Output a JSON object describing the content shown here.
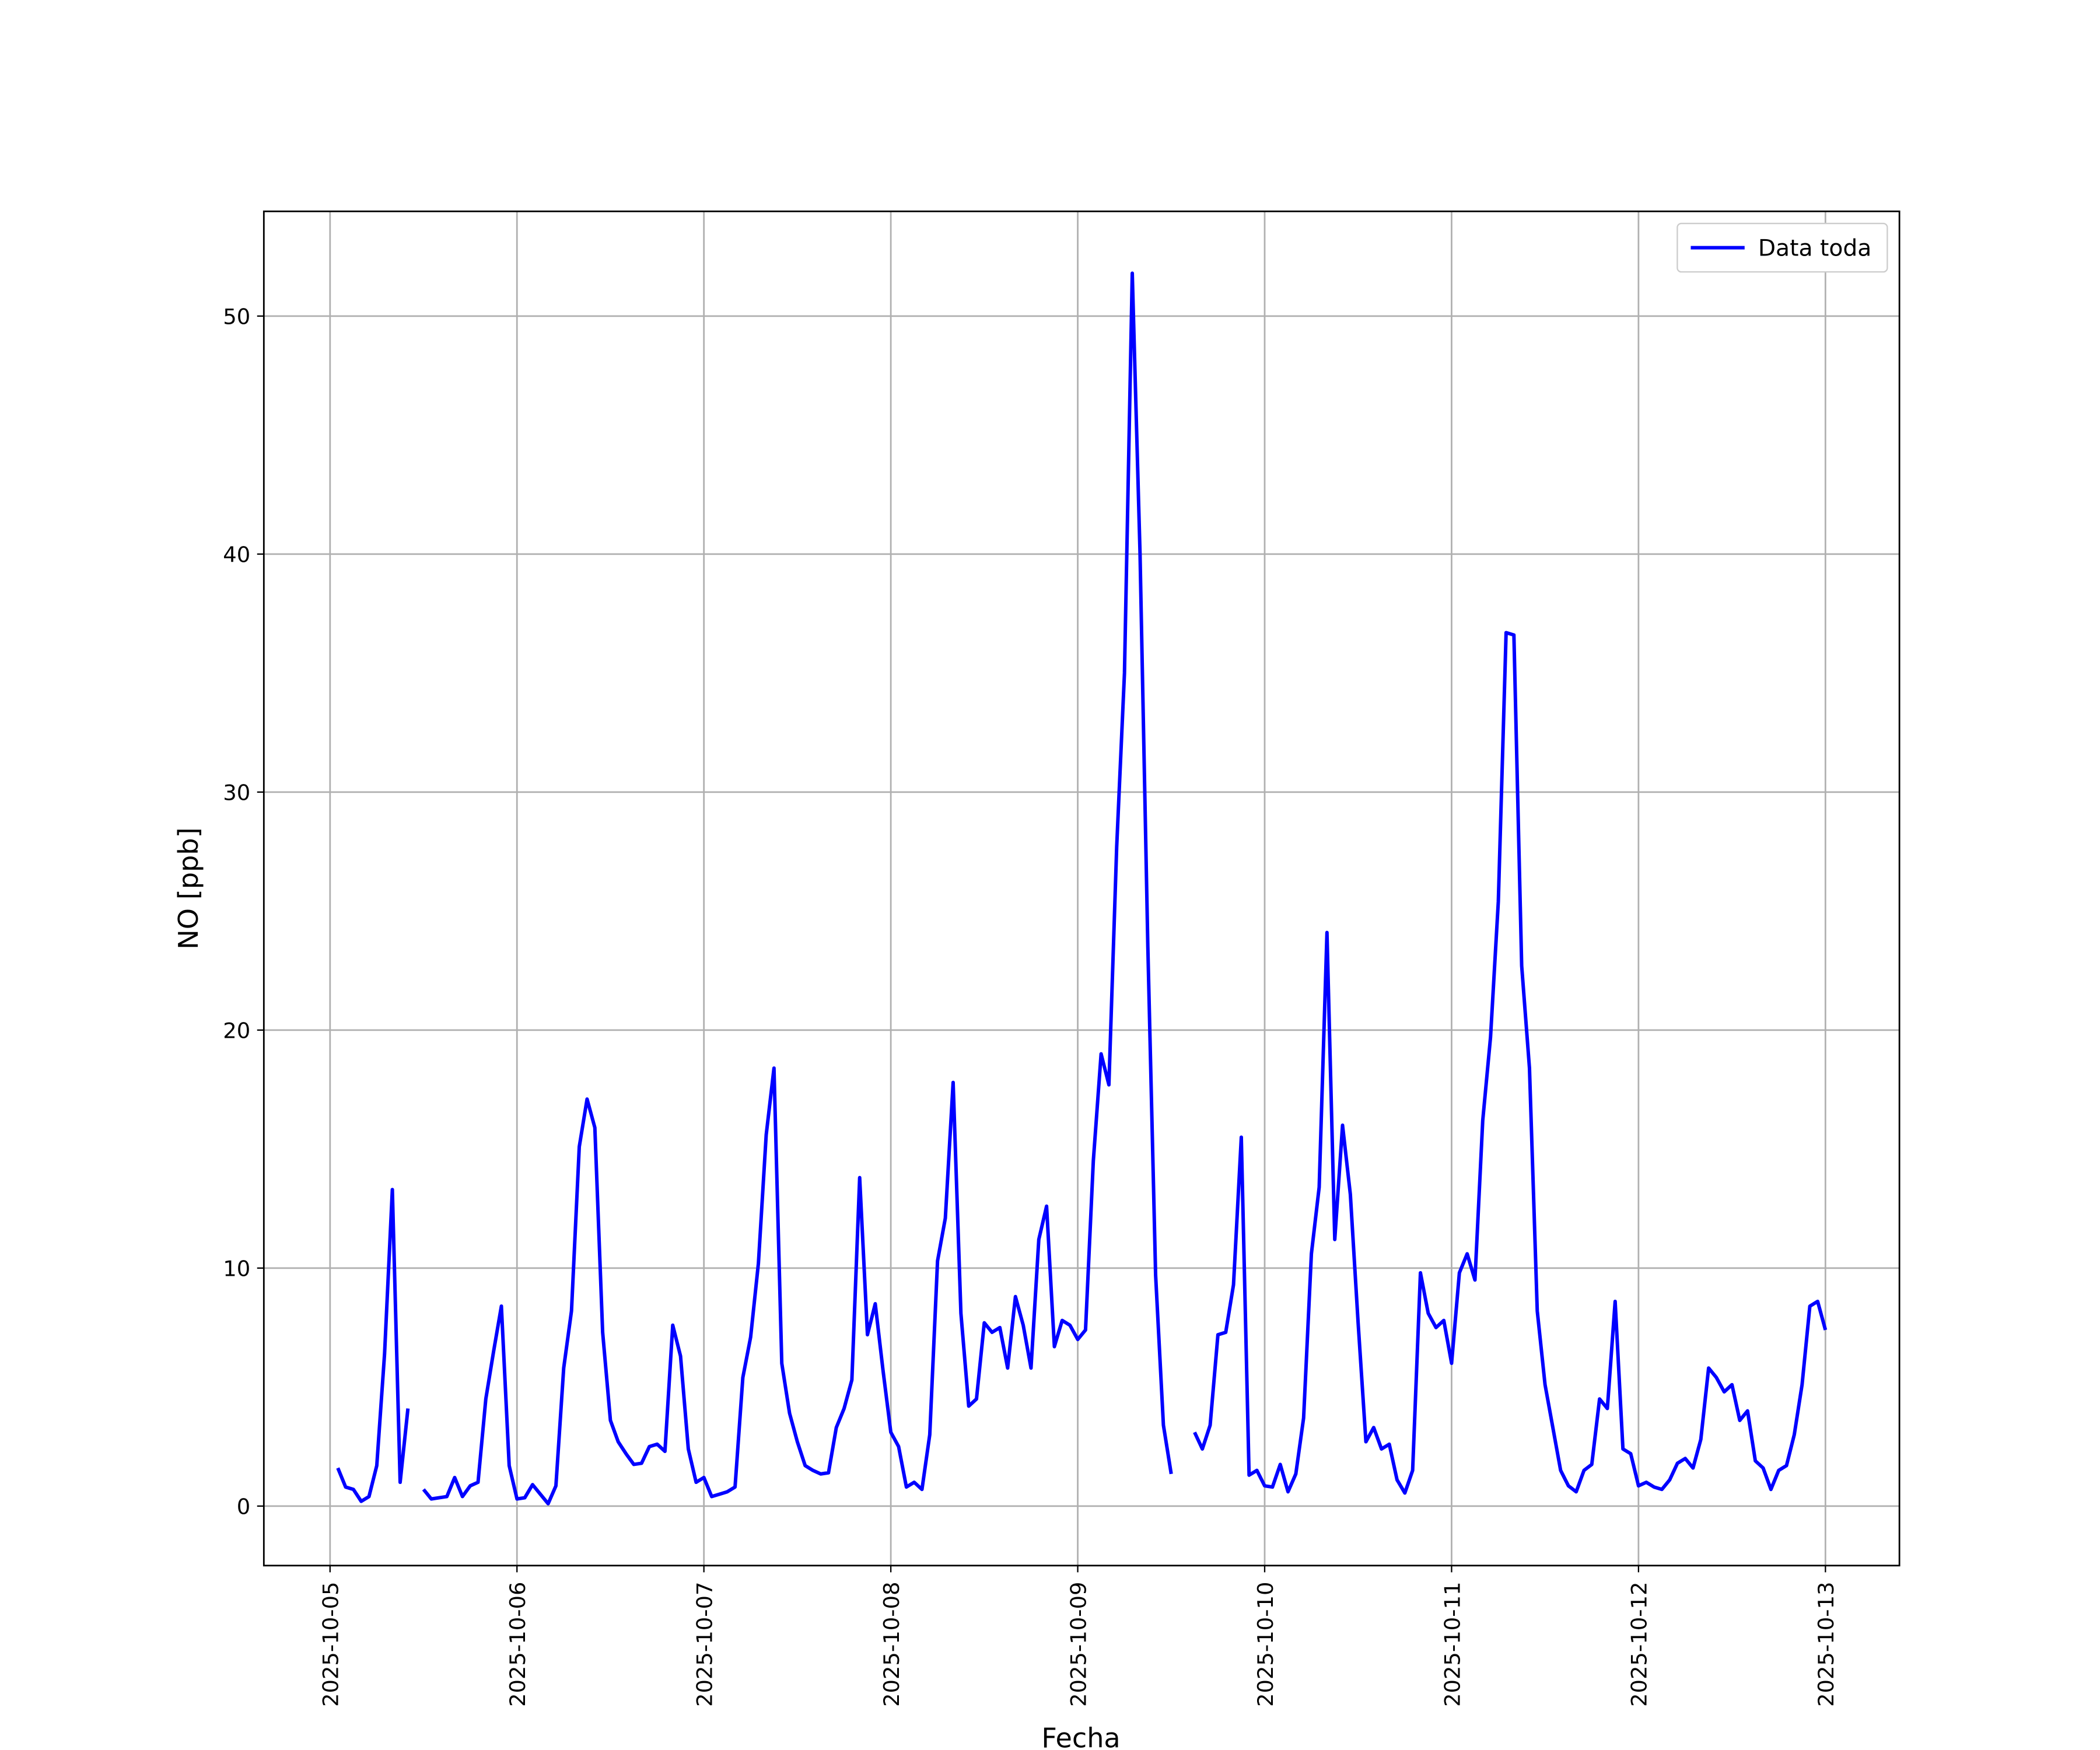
{
  "chart_data": {
    "type": "line",
    "xlabel": "Fecha",
    "ylabel": "NO [ppb]",
    "legend": "upper right",
    "grid": true,
    "xlim": [
      "2025-10-04 15:30",
      "2025-10-13 09:30"
    ],
    "xticks": [
      "2025-10-05",
      "2025-10-06",
      "2025-10-07",
      "2025-10-08",
      "2025-10-09",
      "2025-10-10",
      "2025-10-11",
      "2025-10-12",
      "2025-10-13"
    ],
    "ylim": [
      -2.5,
      54.4
    ],
    "yticks": [
      0,
      10,
      20,
      30,
      40,
      50
    ],
    "x": [
      "2025-10-05 01:00",
      "2025-10-05 02:00",
      "2025-10-05 03:00",
      "2025-10-05 04:00",
      "2025-10-05 05:00",
      "2025-10-05 06:00",
      "2025-10-05 07:00",
      "2025-10-05 08:00",
      "2025-10-05 09:00",
      "2025-10-05 10:00",
      "2025-10-05 11:00",
      "2025-10-05 12:00",
      "2025-10-05 13:00",
      "2025-10-05 14:00",
      "2025-10-05 15:00",
      "2025-10-05 16:00",
      "2025-10-05 17:00",
      "2025-10-05 18:00",
      "2025-10-05 19:00",
      "2025-10-05 20:00",
      "2025-10-05 21:00",
      "2025-10-05 22:00",
      "2025-10-05 23:00",
      "2025-10-06 00:00",
      "2025-10-06 01:00",
      "2025-10-06 02:00",
      "2025-10-06 03:00",
      "2025-10-06 04:00",
      "2025-10-06 05:00",
      "2025-10-06 06:00",
      "2025-10-06 07:00",
      "2025-10-06 08:00",
      "2025-10-06 09:00",
      "2025-10-06 10:00",
      "2025-10-06 11:00",
      "2025-10-06 12:00",
      "2025-10-06 13:00",
      "2025-10-06 14:00",
      "2025-10-06 15:00",
      "2025-10-06 16:00",
      "2025-10-06 17:00",
      "2025-10-06 18:00",
      "2025-10-06 19:00",
      "2025-10-06 20:00",
      "2025-10-06 21:00",
      "2025-10-06 22:00",
      "2025-10-06 23:00",
      "2025-10-07 00:00",
      "2025-10-07 01:00",
      "2025-10-07 02:00",
      "2025-10-07 03:00",
      "2025-10-07 04:00",
      "2025-10-07 05:00",
      "2025-10-07 06:00",
      "2025-10-07 07:00",
      "2025-10-07 08:00",
      "2025-10-07 09:00",
      "2025-10-07 10:00",
      "2025-10-07 11:00",
      "2025-10-07 12:00",
      "2025-10-07 13:00",
      "2025-10-07 14:00",
      "2025-10-07 15:00",
      "2025-10-07 16:00",
      "2025-10-07 17:00",
      "2025-10-07 18:00",
      "2025-10-07 19:00",
      "2025-10-07 20:00",
      "2025-10-07 21:00",
      "2025-10-07 22:00",
      "2025-10-07 23:00",
      "2025-10-08 00:00",
      "2025-10-08 01:00",
      "2025-10-08 02:00",
      "2025-10-08 03:00",
      "2025-10-08 04:00",
      "2025-10-08 05:00",
      "2025-10-08 06:00",
      "2025-10-08 07:00",
      "2025-10-08 08:00",
      "2025-10-08 09:00",
      "2025-10-08 10:00",
      "2025-10-08 11:00",
      "2025-10-08 12:00",
      "2025-10-08 13:00",
      "2025-10-08 14:00",
      "2025-10-08 15:00",
      "2025-10-08 16:00",
      "2025-10-08 17:00",
      "2025-10-08 18:00",
      "2025-10-08 19:00",
      "2025-10-08 20:00",
      "2025-10-08 21:00",
      "2025-10-08 22:00",
      "2025-10-08 23:00",
      "2025-10-09 00:00",
      "2025-10-09 01:00",
      "2025-10-09 02:00",
      "2025-10-09 03:00",
      "2025-10-09 04:00",
      "2025-10-09 05:00",
      "2025-10-09 06:00",
      "2025-10-09 07:00",
      "2025-10-09 08:00",
      "2025-10-09 09:00",
      "2025-10-09 10:00",
      "2025-10-09 11:00",
      "2025-10-09 12:00",
      "2025-10-09 13:00",
      "2025-10-09 14:00",
      "2025-10-09 15:00",
      "2025-10-09 16:00",
      "2025-10-09 17:00",
      "2025-10-09 18:00",
      "2025-10-09 19:00",
      "2025-10-09 20:00",
      "2025-10-09 21:00",
      "2025-10-09 22:00",
      "2025-10-09 23:00",
      "2025-10-10 00:00",
      "2025-10-10 01:00",
      "2025-10-10 02:00",
      "2025-10-10 03:00",
      "2025-10-10 04:00",
      "2025-10-10 05:00",
      "2025-10-10 06:00",
      "2025-10-10 07:00",
      "2025-10-10 08:00",
      "2025-10-10 09:00",
      "2025-10-10 10:00",
      "2025-10-10 11:00",
      "2025-10-10 12:00",
      "2025-10-10 13:00",
      "2025-10-10 14:00",
      "2025-10-10 15:00",
      "2025-10-10 16:00",
      "2025-10-10 17:00",
      "2025-10-10 18:00",
      "2025-10-10 19:00",
      "2025-10-10 20:00",
      "2025-10-10 21:00",
      "2025-10-10 22:00",
      "2025-10-10 23:00",
      "2025-10-11 00:00",
      "2025-10-11 01:00",
      "2025-10-11 02:00",
      "2025-10-11 03:00",
      "2025-10-11 04:00",
      "2025-10-11 05:00",
      "2025-10-11 06:00",
      "2025-10-11 07:00",
      "2025-10-11 08:00",
      "2025-10-11 09:00",
      "2025-10-11 10:00",
      "2025-10-11 11:00",
      "2025-10-11 12:00",
      "2025-10-11 13:00",
      "2025-10-11 14:00",
      "2025-10-11 15:00",
      "2025-10-11 16:00",
      "2025-10-11 17:00",
      "2025-10-11 18:00",
      "2025-10-11 19:00",
      "2025-10-11 20:00",
      "2025-10-11 21:00",
      "2025-10-11 22:00",
      "2025-10-11 23:00",
      "2025-10-12 00:00",
      "2025-10-12 01:00",
      "2025-10-12 02:00",
      "2025-10-12 03:00",
      "2025-10-12 04:00",
      "2025-10-12 05:00",
      "2025-10-12 06:00",
      "2025-10-12 07:00",
      "2025-10-12 08:00",
      "2025-10-12 09:00",
      "2025-10-12 10:00",
      "2025-10-12 11:00",
      "2025-10-12 12:00",
      "2025-10-12 13:00",
      "2025-10-12 14:00",
      "2025-10-12 15:00",
      "2025-10-12 16:00",
      "2025-10-12 17:00",
      "2025-10-12 18:00",
      "2025-10-12 19:00",
      "2025-10-12 20:00",
      "2025-10-12 21:00",
      "2025-10-12 22:00",
      "2025-10-12 23:00",
      "2025-10-13 00:00"
    ],
    "series": [
      {
        "name": "Data toda",
        "color": "#0000ff",
        "values": [
          1.6,
          0.8,
          0.7,
          0.2,
          0.4,
          1.7,
          6.4,
          13.3,
          1.0,
          4.1,
          null,
          0.7,
          0.3,
          0.35,
          0.4,
          1.2,
          0.4,
          0.85,
          1.0,
          4.5,
          6.5,
          8.4,
          1.7,
          0.3,
          0.35,
          0.9,
          0.5,
          0.1,
          0.85,
          5.8,
          8.2,
          15.1,
          17.1,
          15.9,
          7.3,
          3.6,
          2.7,
          2.2,
          1.75,
          1.8,
          2.5,
          2.6,
          2.3,
          7.6,
          6.3,
          2.4,
          1.0,
          1.2,
          0.4,
          0.5,
          0.6,
          0.8,
          5.4,
          7.1,
          10.2,
          15.6,
          18.4,
          6.0,
          3.9,
          2.7,
          1.7,
          1.5,
          1.35,
          1.4,
          3.3,
          4.1,
          5.3,
          13.8,
          7.2,
          8.5,
          5.7,
          3.1,
          2.5,
          0.8,
          1.0,
          0.7,
          3.0,
          10.3,
          12.1,
          17.8,
          8.1,
          4.2,
          4.5,
          7.7,
          7.3,
          7.5,
          5.8,
          8.8,
          7.6,
          5.8,
          11.2,
          12.6,
          6.7,
          7.8,
          7.6,
          7.0,
          7.4,
          14.5,
          19.0,
          17.7,
          27.7,
          35.0,
          51.8,
          40.0,
          23.5,
          9.7,
          3.4,
          1.35,
          null,
          null,
          3.1,
          2.4,
          3.4,
          7.2,
          7.3,
          9.3,
          15.5,
          1.3,
          1.5,
          0.85,
          0.8,
          1.75,
          0.6,
          1.35,
          3.7,
          10.6,
          13.4,
          24.1,
          11.2,
          16.0,
          13.1,
          7.7,
          2.7,
          3.3,
          2.4,
          2.6,
          1.1,
          0.55,
          1.5,
          9.8,
          8.1,
          7.5,
          7.8,
          6.0,
          9.8,
          10.6,
          9.5,
          16.2,
          19.7,
          25.4,
          36.7,
          36.6,
          22.7,
          18.4,
          8.2,
          5.1,
          3.3,
          1.5,
          0.85,
          0.6,
          1.5,
          1.75,
          4.5,
          4.1,
          8.6,
          2.4,
          2.2,
          0.85,
          1.0,
          0.8,
          0.7,
          1.1,
          1.8,
          2.0,
          1.6,
          2.8,
          5.8,
          5.4,
          4.8,
          5.1,
          3.6,
          4.0,
          1.9,
          1.6,
          0.7,
          1.5,
          1.7,
          3.0,
          5.1,
          8.4,
          8.6,
          7.4
        ]
      }
    ]
  }
}
